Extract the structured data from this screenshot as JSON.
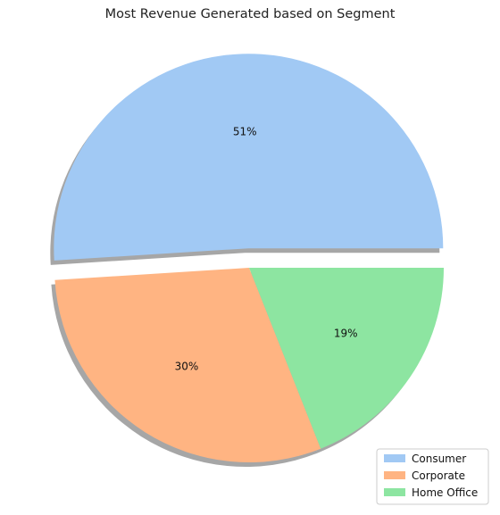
{
  "chart_data": {
    "type": "pie",
    "title": "Most Revenue Generated based on Segment",
    "categories": [
      "Consumer",
      "Corporate",
      "Home Office"
    ],
    "values": [
      51,
      30,
      19
    ],
    "labels": [
      "51%",
      "30%",
      "19%"
    ],
    "colors": [
      "#a1c9f4",
      "#ffb482",
      "#8de5a1"
    ],
    "explode": [
      0.1,
      0,
      0
    ],
    "shadow": true,
    "legend_position": "lower-right"
  }
}
